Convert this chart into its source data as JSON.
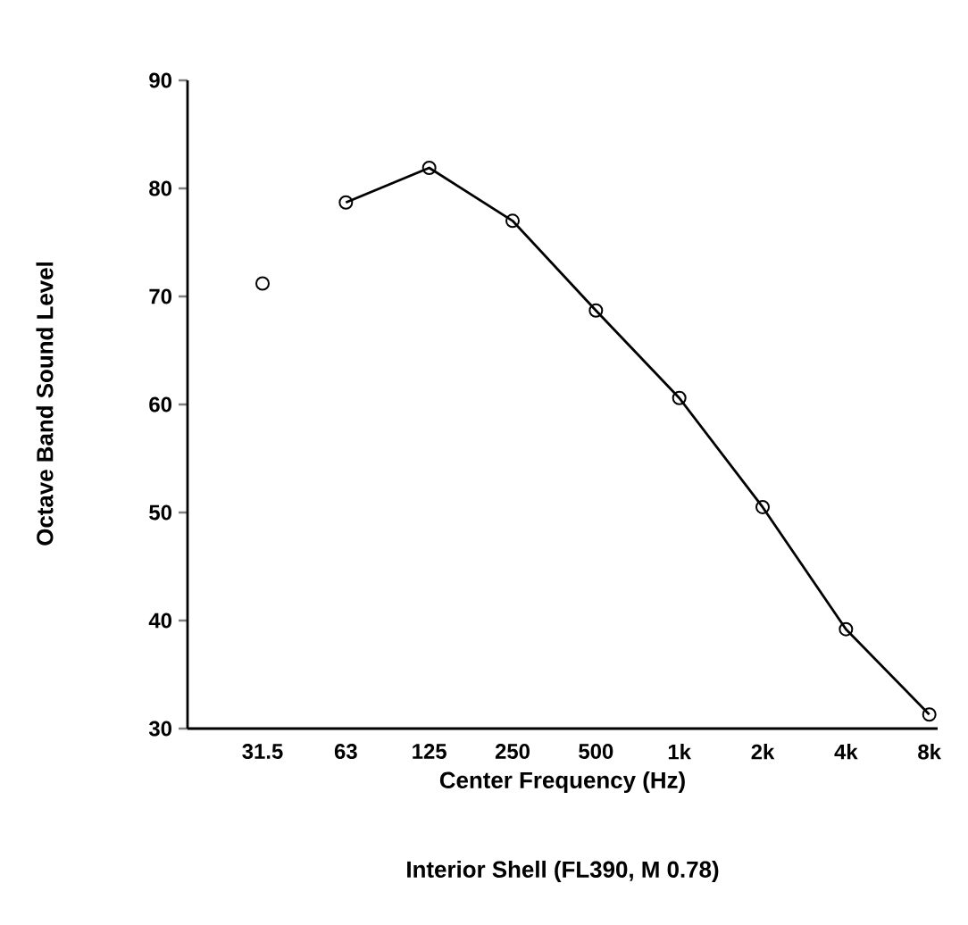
{
  "chart_data": {
    "type": "line",
    "title": "Interior Shell (FL390, M 0.78)",
    "xlabel": "Center Frequency (Hz)",
    "ylabel": "Octave Band Sound Level",
    "categories": [
      "31.5",
      "63",
      "125",
      "250",
      "500",
      "1k",
      "2k",
      "4k",
      "8k"
    ],
    "series": [
      {
        "type": "scatter",
        "color": "#000000",
        "values": [
          71.2,
          null,
          null,
          null,
          null,
          null,
          null,
          null,
          null
        ]
      },
      {
        "color": "#000000",
        "values": [
          null,
          78.7,
          81.9,
          77.0,
          68.7,
          60.6,
          50.5,
          39.2,
          31.3
        ]
      }
    ],
    "ylim": [
      30,
      90
    ],
    "yticks": [
      30,
      40,
      50,
      60,
      70,
      80,
      90
    ],
    "marker": "circle",
    "line_style": "solid"
  }
}
